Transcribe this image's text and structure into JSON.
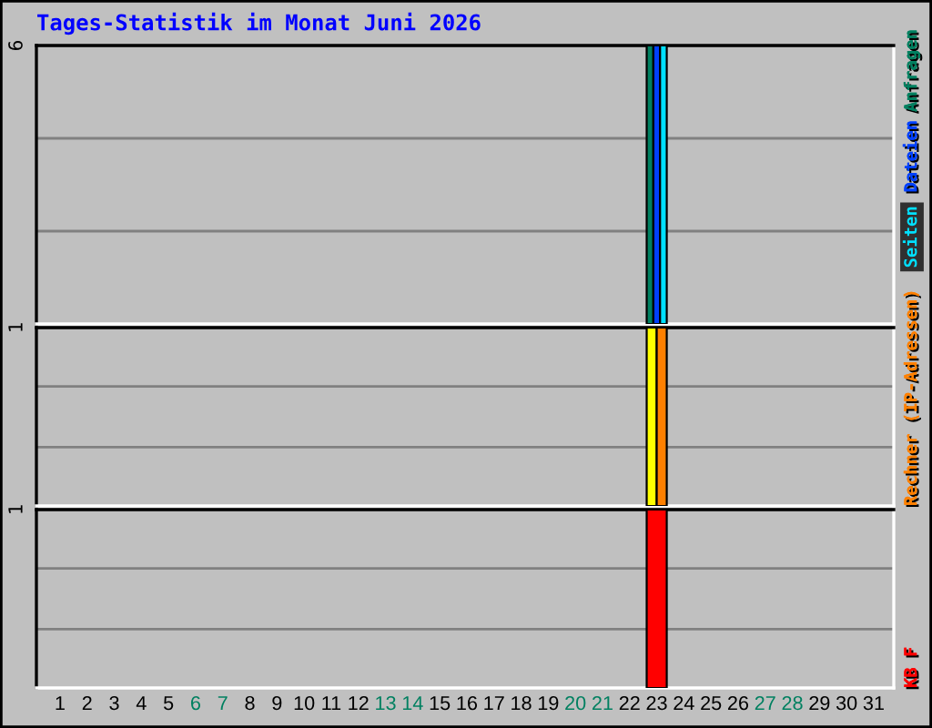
{
  "chart_data": [
    {
      "type": "bar",
      "title": "Tages-Statistik im Monat Juni 2026",
      "categories": [
        "1",
        "2",
        "3",
        "4",
        "5",
        "6",
        "7",
        "8",
        "9",
        "10",
        "11",
        "12",
        "13",
        "14",
        "15",
        "16",
        "17",
        "18",
        "19",
        "20",
        "21",
        "22",
        "23",
        "24",
        "25",
        "26",
        "27",
        "28",
        "29",
        "30",
        "31"
      ],
      "series": [
        {
          "name": "Anfragen",
          "color": "#008060",
          "values": [
            null,
            null,
            null,
            null,
            null,
            null,
            null,
            null,
            null,
            null,
            null,
            null,
            null,
            null,
            null,
            null,
            null,
            null,
            null,
            null,
            null,
            null,
            6,
            null,
            null,
            null,
            null,
            null,
            null,
            null,
            null
          ]
        },
        {
          "name": "Dateien",
          "color": "#0040ff",
          "values": [
            null,
            null,
            null,
            null,
            null,
            null,
            null,
            null,
            null,
            null,
            null,
            null,
            null,
            null,
            null,
            null,
            null,
            null,
            null,
            null,
            null,
            null,
            6,
            null,
            null,
            null,
            null,
            null,
            null,
            null,
            null
          ]
        },
        {
          "name": "Seiten",
          "color": "#00e0ff",
          "values": [
            null,
            null,
            null,
            null,
            null,
            null,
            null,
            null,
            null,
            null,
            null,
            null,
            null,
            null,
            null,
            null,
            null,
            null,
            null,
            null,
            null,
            null,
            6,
            null,
            null,
            null,
            null,
            null,
            null,
            null,
            null
          ]
        }
      ],
      "ylim": [
        0,
        6
      ],
      "yticks": [
        {
          "value": 2,
          "label": null
        },
        {
          "value": 4,
          "label": null
        },
        6
      ],
      "grid": "y",
      "legend": "right",
      "tick_labels": "y"
    },
    {
      "type": "bar",
      "categories": [
        "1",
        "2",
        "3",
        "4",
        "5",
        "6",
        "7",
        "8",
        "9",
        "10",
        "11",
        "12",
        "13",
        "14",
        "15",
        "16",
        "17",
        "18",
        "19",
        "20",
        "21",
        "22",
        "23",
        "24",
        "25",
        "26",
        "27",
        "28",
        "29",
        "30",
        "31"
      ],
      "series": [
        {
          "color": "#ffff00",
          "values": [
            null,
            null,
            null,
            null,
            null,
            null,
            null,
            null,
            null,
            null,
            null,
            null,
            null,
            null,
            null,
            null,
            null,
            null,
            null,
            null,
            null,
            null,
            1,
            null,
            null,
            null,
            null,
            null,
            null,
            null,
            null
          ]
        },
        {
          "name": "Rechner (IP-Adressen)",
          "color": "#ff8000",
          "values": [
            null,
            null,
            null,
            null,
            null,
            null,
            null,
            null,
            null,
            null,
            null,
            null,
            null,
            null,
            null,
            null,
            null,
            null,
            null,
            null,
            null,
            null,
            1,
            null,
            null,
            null,
            null,
            null,
            null,
            null,
            null
          ]
        }
      ],
      "ylim": [
        0,
        1
      ],
      "yticks": [
        {
          "value": 0.33,
          "label": null
        },
        {
          "value": 0.67,
          "label": null
        },
        1
      ],
      "grid": "y",
      "legend": "right",
      "tick_labels": "y"
    },
    {
      "type": "bar",
      "categories": [
        "1",
        "2",
        "3",
        "4",
        "5",
        "6",
        "7",
        "8",
        "9",
        "10",
        "11",
        "12",
        "13",
        "14",
        "15",
        "16",
        "17",
        "18",
        "19",
        "20",
        "21",
        "22",
        "23",
        "24",
        "25",
        "26",
        "27",
        "28",
        "29",
        "30",
        "31"
      ],
      "series": [
        {
          "name": "KB F",
          "color": "#ff0000",
          "values": [
            null,
            null,
            null,
            null,
            null,
            null,
            null,
            null,
            null,
            null,
            null,
            null,
            null,
            null,
            null,
            null,
            null,
            null,
            null,
            null,
            null,
            null,
            1,
            null,
            null,
            null,
            null,
            null,
            null,
            null,
            null
          ]
        }
      ],
      "ylim": [
        0,
        1
      ],
      "yticks": [
        {
          "value": 0.33,
          "label": null
        },
        {
          "value": 0.67,
          "label": null
        },
        1
      ],
      "grid": "y",
      "legend": "right"
    }
  ]
}
